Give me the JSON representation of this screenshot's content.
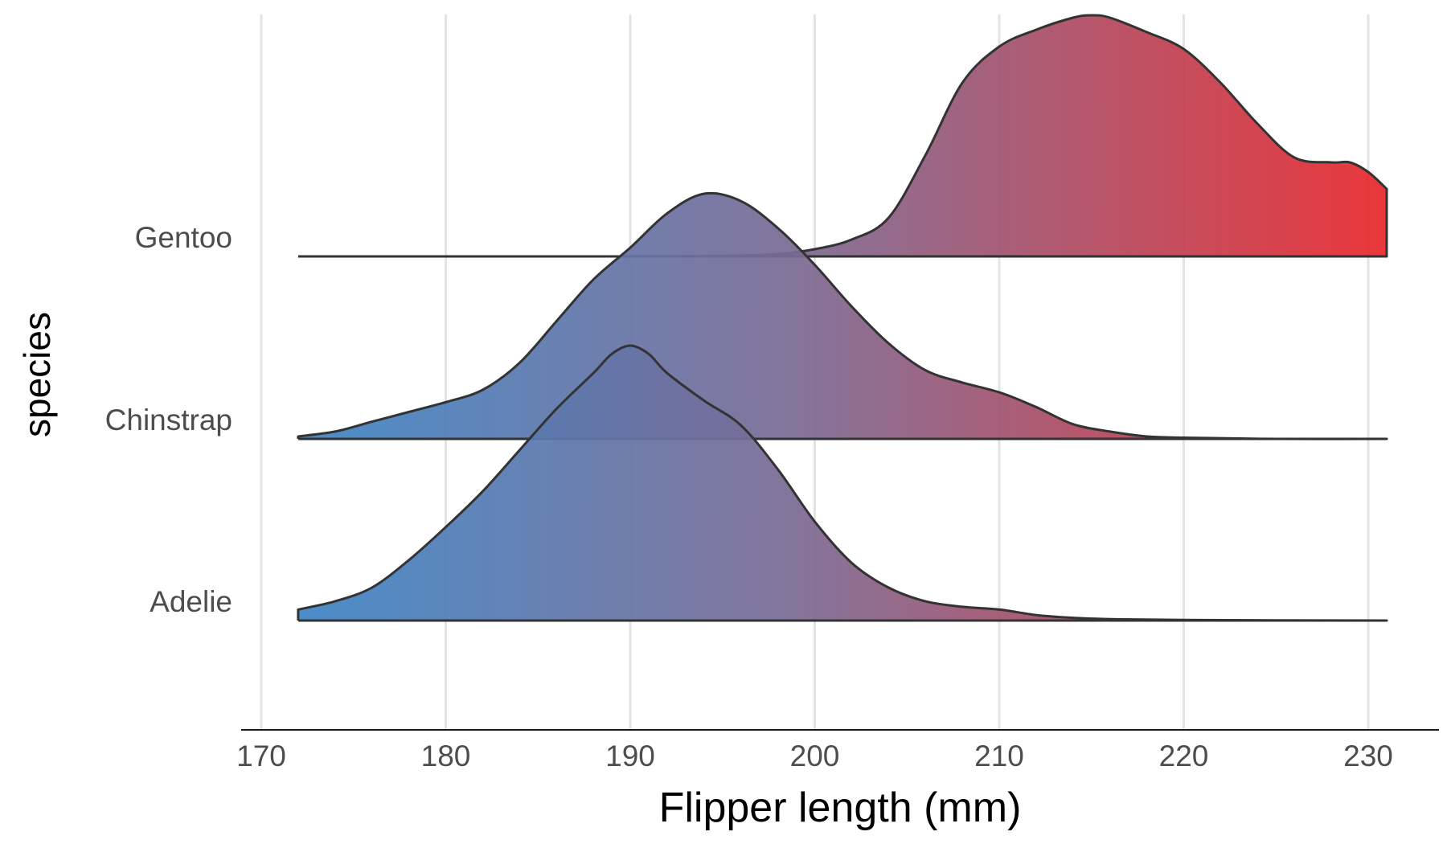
{
  "chart_data": {
    "type": "ridgeline",
    "xlabel": "Flipper length (mm)",
    "ylabel": "species",
    "xlim": [
      170,
      231
    ],
    "x_ticks": [
      170,
      180,
      190,
      200,
      210,
      220,
      230
    ],
    "x_tick_labels": [
      "170",
      "180",
      "190",
      "200",
      "210",
      "220",
      "230"
    ],
    "grid": "vertical",
    "fill_gradient": {
      "low_color": "#3d85c6",
      "mid_color": "#7a6b95",
      "high_color": "#e8282c",
      "low_value": 172,
      "high_value": 231
    },
    "outline_color": "#333333",
    "series": [
      {
        "name": "Adelie",
        "x": [
          172,
          174,
          176,
          178,
          180,
          182,
          184,
          186,
          188,
          189,
          190,
          191,
          192,
          194,
          196,
          198,
          200,
          202,
          204,
          206,
          208,
          210,
          212,
          214,
          216,
          220,
          225,
          231
        ],
        "density": [
          0.04,
          0.07,
          0.12,
          0.22,
          0.34,
          0.47,
          0.62,
          0.77,
          0.9,
          0.97,
          1.0,
          0.97,
          0.9,
          0.8,
          0.71,
          0.55,
          0.36,
          0.21,
          0.12,
          0.07,
          0.05,
          0.04,
          0.02,
          0.01,
          0.005,
          0.002,
          0.001,
          0.0
        ]
      },
      {
        "name": "Chinstrap",
        "x": [
          172,
          174,
          176,
          178,
          180,
          182,
          184,
          186,
          188,
          190,
          192,
          194,
          196,
          198,
          200,
          202,
          204,
          206,
          208,
          210,
          212,
          214,
          216,
          218,
          220,
          225,
          231
        ],
        "density": [
          0.01,
          0.03,
          0.07,
          0.11,
          0.15,
          0.2,
          0.31,
          0.48,
          0.65,
          0.78,
          0.92,
          1.0,
          0.97,
          0.86,
          0.71,
          0.54,
          0.39,
          0.28,
          0.23,
          0.19,
          0.13,
          0.06,
          0.03,
          0.01,
          0.005,
          0.0,
          0.0
        ]
      },
      {
        "name": "Gentoo",
        "x": [
          172,
          180,
          190,
          195,
          198,
          200,
          202,
          204,
          206,
          208,
          210,
          212,
          214,
          215,
          216,
          218,
          220,
          222,
          224,
          226,
          228,
          229,
          230,
          231
        ],
        "density": [
          0.0,
          0.0,
          0.0,
          0.002,
          0.01,
          0.03,
          0.07,
          0.16,
          0.42,
          0.72,
          0.87,
          0.94,
          0.99,
          1.0,
          0.99,
          0.93,
          0.86,
          0.72,
          0.55,
          0.41,
          0.39,
          0.39,
          0.35,
          0.28
        ]
      }
    ]
  }
}
